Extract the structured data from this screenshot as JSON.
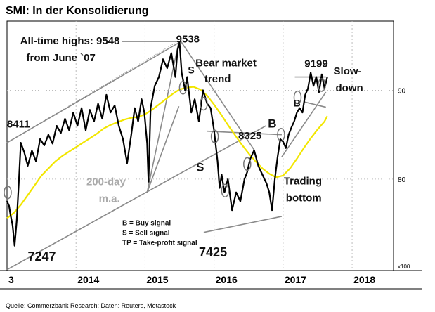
{
  "page_title": "SMI: In der Konsolidierung",
  "source": "Quelle: Commerzbank Research; Daten: Reuters, Metastock",
  "chart_data": {
    "type": "line",
    "title": "SMI: In der Konsolidierung",
    "x_ticks": [
      "3",
      "2014",
      "2015",
      "2016",
      "2017",
      "2018"
    ],
    "y_ticks": [
      {
        "value": 90,
        "label": "90"
      },
      {
        "value": 80,
        "label": "80"
      }
    ],
    "y_unit": "x100",
    "ylim": [
      69.7,
      97.8
    ],
    "xlim": [
      2013.0,
      2018.6
    ],
    "grid": true,
    "colors": {
      "price": "#000000",
      "ma200": "#f2e600",
      "trend": "#8a8a8a",
      "circle": "#777777"
    },
    "series": [
      {
        "name": "SMI",
        "x": [
          2013.0,
          2013.03,
          2013.05,
          2013.08,
          2013.11,
          2013.14,
          2013.17,
          2013.2,
          2013.25,
          2013.3,
          2013.36,
          2013.42,
          2013.48,
          2013.54,
          2013.6,
          2013.66,
          2013.72,
          2013.78,
          2013.84,
          2013.9,
          2013.96,
          2014.02,
          2014.08,
          2014.14,
          2014.2,
          2014.26,
          2014.32,
          2014.38,
          2014.44,
          2014.5,
          2014.56,
          2014.62,
          2014.68,
          2014.74,
          2014.8,
          2014.85,
          2014.9,
          2014.95,
          2014.99,
          2015.03,
          2015.05,
          2015.08,
          2015.14,
          2015.2,
          2015.26,
          2015.32,
          2015.38,
          2015.44,
          2015.47,
          2015.5,
          2015.53,
          2015.58,
          2015.61,
          2015.64,
          2015.67,
          2015.72,
          2015.78,
          2015.84,
          2015.9,
          2015.95,
          2016.0,
          2016.05,
          2016.08,
          2016.11,
          2016.15,
          2016.2,
          2016.26,
          2016.32,
          2016.38,
          2016.44,
          2016.48,
          2016.52,
          2016.58,
          2016.64,
          2016.7,
          2016.76,
          2016.8,
          2016.84,
          2016.88,
          2016.92,
          2016.96,
          2017.0,
          2017.04,
          2017.08,
          2017.12,
          2017.16,
          2017.2,
          2017.24,
          2017.28,
          2017.32,
          2017.36,
          2017.4,
          2017.44,
          2017.48,
          2017.52,
          2017.56,
          2017.6,
          2017.64
        ],
        "y": [
          77.5,
          77.0,
          76.0,
          74.8,
          72.5,
          75.3,
          79.5,
          84.1,
          83.0,
          81.5,
          83.2,
          82.0,
          84.5,
          83.8,
          85.0,
          84.0,
          86.0,
          85.2,
          86.8,
          85.5,
          87.5,
          86.0,
          88.0,
          85.5,
          87.8,
          86.5,
          88.5,
          86.8,
          89.5,
          87.5,
          88.3,
          86.0,
          84.5,
          81.8,
          85.0,
          88.0,
          86.5,
          89.0,
          87.5,
          84.0,
          79.7,
          88.0,
          90.5,
          91.5,
          93.5,
          92.5,
          94.2,
          91.5,
          94.5,
          95.38,
          92.0,
          90.0,
          91.5,
          89.5,
          87.5,
          89.0,
          86.5,
          90.0,
          88.5,
          88.0,
          85.5,
          82.0,
          79.0,
          80.5,
          78.5,
          80.0,
          76.5,
          78.5,
          77.5,
          80.0,
          80.8,
          82.2,
          83.25,
          81.5,
          80.5,
          79.5,
          78.5,
          76.5,
          80.0,
          82.5,
          84.5,
          84.2,
          83.5,
          85.0,
          85.8,
          86.5,
          87.5,
          88.0,
          87.5,
          89.5,
          90.2,
          91.99,
          90.5,
          91.5,
          89.8,
          91.8,
          90.2,
          91.5
        ]
      },
      {
        "name": "200-day m.a.",
        "x": [
          2013.0,
          2013.1,
          2013.2,
          2013.3,
          2013.4,
          2013.5,
          2013.6,
          2013.7,
          2013.8,
          2013.9,
          2014.0,
          2014.1,
          2014.2,
          2014.3,
          2014.4,
          2014.5,
          2014.6,
          2014.7,
          2014.8,
          2014.9,
          2015.0,
          2015.1,
          2015.2,
          2015.3,
          2015.4,
          2015.5,
          2015.6,
          2015.7,
          2015.8,
          2015.9,
          2016.0,
          2016.1,
          2016.2,
          2016.3,
          2016.4,
          2016.5,
          2016.6,
          2016.7,
          2016.8,
          2016.9,
          2017.0,
          2017.1,
          2017.2,
          2017.3,
          2017.4,
          2017.5,
          2017.6,
          2017.64
        ],
        "y": [
          75.6,
          76.2,
          77.1,
          78.2,
          79.3,
          80.4,
          81.2,
          82.0,
          82.6,
          83.1,
          83.6,
          84.1,
          84.6,
          85.1,
          85.7,
          86.1,
          86.4,
          86.7,
          86.9,
          87.0,
          87.3,
          87.8,
          88.4,
          89.0,
          89.6,
          90.1,
          90.3,
          90.4,
          90.1,
          89.4,
          88.4,
          87.3,
          86.1,
          85.0,
          83.9,
          82.9,
          82.0,
          81.2,
          80.6,
          80.2,
          80.4,
          81.2,
          82.3,
          83.5,
          84.6,
          85.6,
          86.5,
          87.1
        ]
      }
    ],
    "annotations": [
      {
        "text": "All-time highs: 9548",
        "x": 2013.19,
        "y": 95.2,
        "size": 15
      },
      {
        "text": "from June `07",
        "x": 2013.28,
        "y": 93.3,
        "size": 15
      },
      {
        "text": "9538",
        "x": 2015.45,
        "y": 95.4,
        "size": 15
      },
      {
        "text": "Bear market",
        "x": 2015.73,
        "y": 92.7,
        "size": 15
      },
      {
        "text": "trend",
        "x": 2015.86,
        "y": 90.9,
        "size": 15
      },
      {
        "text": "S",
        "x": 2015.62,
        "y": 91.9,
        "size": 14
      },
      {
        "text": "9199",
        "x": 2017.31,
        "y": 92.6,
        "size": 15
      },
      {
        "text": "Slow-",
        "x": 2017.73,
        "y": 91.8,
        "size": 15
      },
      {
        "text": "down",
        "x": 2017.76,
        "y": 89.9,
        "size": 15
      },
      {
        "text": "B",
        "x": 2017.15,
        "y": 88.2,
        "size": 14
      },
      {
        "text": "8411",
        "x": 2013.0,
        "y": 85.8,
        "size": 15
      },
      {
        "text": "B",
        "x": 2016.78,
        "y": 85.8,
        "size": 17
      },
      {
        "text": "8325",
        "x": 2016.35,
        "y": 84.5,
        "size": 15
      },
      {
        "text": "S",
        "x": 2015.74,
        "y": 80.9,
        "size": 17
      },
      {
        "text": "200-day",
        "x": 2014.15,
        "y": 79.3,
        "size": 15,
        "color": "#aaaaaa"
      },
      {
        "text": "m.a.",
        "x": 2014.33,
        "y": 77.4,
        "size": 15,
        "color": "#aaaaaa"
      },
      {
        "text": "Trading",
        "x": 2017.01,
        "y": 79.4,
        "size": 15
      },
      {
        "text": "bottom",
        "x": 2017.04,
        "y": 77.5,
        "size": 15
      },
      {
        "text": "B = Buy signal",
        "x": 2014.67,
        "y": 74.8,
        "size": 10
      },
      {
        "text": "S = Sell signal",
        "x": 2014.67,
        "y": 73.7,
        "size": 10
      },
      {
        "text": "TP = Take-profit signal",
        "x": 2014.67,
        "y": 72.6,
        "size": 10
      },
      {
        "text": "7247",
        "x": 2013.3,
        "y": 70.8,
        "size": 18
      },
      {
        "text": "7425",
        "x": 2015.78,
        "y": 71.3,
        "size": 18
      }
    ],
    "trend_lines": [
      {
        "x1": 2013.0,
        "y1": 69.8,
        "x2": 2016.75,
        "y2": 86.0
      },
      {
        "x1": 2013.0,
        "y1": 84.1,
        "x2": 2015.52,
        "y2": 95.5
      },
      {
        "x1": 2014.67,
        "y1": 95.5,
        "x2": 2015.52,
        "y2": 95.5
      },
      {
        "x1": 2015.52,
        "y1": 95.5,
        "x2": 2016.58,
        "y2": 83.3
      },
      {
        "x1": 2015.9,
        "y1": 85.4,
        "x2": 2016.98,
        "y2": 85.0
      },
      {
        "x1": 2015.85,
        "y1": 74.0,
        "x2": 2016.98,
        "y2": 75.8
      },
      {
        "x1": 2016.98,
        "y1": 82.5,
        "x2": 2017.62,
        "y2": 89.8
      },
      {
        "x1": 2017.17,
        "y1": 91.5,
        "x2": 2017.62,
        "y2": 91.5
      },
      {
        "x1": 2017.3,
        "y1": 88.7,
        "x2": 2017.62,
        "y2": 88.1
      },
      {
        "x1": 2015.03,
        "y1": 78.5,
        "x2": 2015.49,
        "y2": 88.2
      },
      {
        "x1": 2015.03,
        "y1": 78.5,
        "x2": 2015.49,
        "y2": 95.5
      }
    ],
    "signal_circles": [
      {
        "x": 2013.01,
        "y": 78.5
      },
      {
        "x": 2015.55,
        "y": 90.3
      },
      {
        "x": 2015.85,
        "y": 88.5
      },
      {
        "x": 2016.01,
        "y": 84.8
      },
      {
        "x": 2016.16,
        "y": 78.7
      },
      {
        "x": 2016.48,
        "y": 81.7
      },
      {
        "x": 2016.97,
        "y": 85.0
      },
      {
        "x": 2017.21,
        "y": 89.2
      },
      {
        "x": 2017.56,
        "y": 90.6
      }
    ]
  }
}
